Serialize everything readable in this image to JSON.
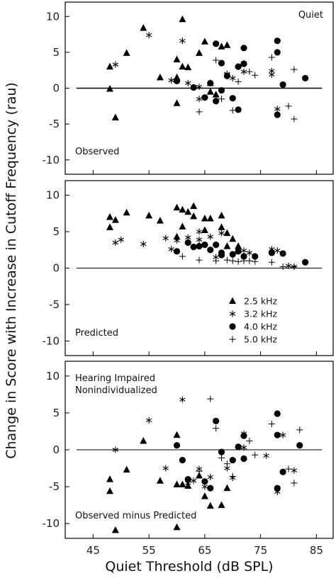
{
  "chart_data": {
    "type": "scatter",
    "ylabel": "Change in Score with Increase in Cutoff Frequency (rau)",
    "xlabel": "Quiet Threshold (dB SPL)",
    "xlim": [
      40,
      88
    ],
    "ylim": [
      -12,
      12
    ],
    "x_ticks": [
      45,
      55,
      65,
      75,
      85
    ],
    "y_ticks": [
      10,
      5,
      0,
      -5,
      -10
    ],
    "grid": false,
    "series_symbols": {
      "2.5 kHz": "triangle",
      "3.2 kHz": "asterisk",
      "4.0 kHz": "circle",
      "5.0 kHz": "plus"
    },
    "panels": [
      {
        "annotations": {
          "top_right": "Quiet",
          "bottom_left": "Observed"
        },
        "zero_line": "thick",
        "series": [
          {
            "name": "2.5 kHz",
            "points": [
              [
                48,
                3.0
              ],
              [
                48,
                -0.1
              ],
              [
                49,
                -4.1
              ],
              [
                51,
                4.9
              ],
              [
                54,
                8.4
              ],
              [
                57,
                1.5
              ],
              [
                60,
                4.0
              ],
              [
                60,
                -2.1
              ],
              [
                60,
                1.5
              ],
              [
                61,
                9.6
              ],
              [
                61,
                3.0
              ],
              [
                62,
                2.9
              ],
              [
                64,
                4.9
              ],
              [
                65,
                6.5
              ],
              [
                66,
                -0.5
              ],
              [
                66,
                0.7
              ],
              [
                67,
                -0.9
              ],
              [
                68,
                5.8
              ],
              [
                69,
                6.0
              ]
            ]
          },
          {
            "name": "3.2 kHz",
            "points": [
              [
                49,
                3.3
              ],
              [
                55,
                7.4
              ],
              [
                59,
                1.1
              ],
              [
                61,
                6.6
              ],
              [
                62,
                0.7
              ],
              [
                64,
                0.2
              ],
              [
                64,
                -1.5
              ],
              [
                69,
                2.0
              ],
              [
                69,
                1.9
              ],
              [
                70,
                1.4
              ],
              [
                72,
                3.5
              ],
              [
                72,
                2.3
              ],
              [
                77,
                2.4
              ],
              [
                77,
                1.9
              ],
              [
                78,
                -2.9
              ]
            ]
          },
          {
            "name": "4.0 kHz",
            "points": [
              [
                60,
                1.0
              ],
              [
                63,
                0.1
              ],
              [
                65,
                -1.3
              ],
              [
                66,
                0.7
              ],
              [
                67,
                -1.8
              ],
              [
                67,
                6.2
              ],
              [
                68,
                3.5
              ],
              [
                68,
                -0.3
              ],
              [
                69,
                1.7
              ],
              [
                70,
                -1.4
              ],
              [
                71,
                -3.0
              ],
              [
                71,
                3.0
              ],
              [
                72,
                5.6
              ],
              [
                72,
                3.4
              ],
              [
                78,
                6.6
              ],
              [
                78,
                5.0
              ],
              [
                78,
                -3.7
              ],
              [
                79,
                0.5
              ],
              [
                83,
                1.4
              ]
            ]
          },
          {
            "name": "5.0 kHz",
            "points": [
              [
                64,
                -3.3
              ],
              [
                67,
                3.9
              ],
              [
                68,
                -1.5
              ],
              [
                70,
                -3.1
              ],
              [
                71,
                0.9
              ],
              [
                73,
                2.3
              ],
              [
                74,
                1.8
              ],
              [
                77,
                4.3
              ],
              [
                80,
                -2.5
              ],
              [
                81,
                -4.3
              ],
              [
                81,
                2.6
              ]
            ]
          }
        ]
      },
      {
        "annotations": {
          "bottom_left": "Predicted"
        },
        "zero_line": "thin",
        "series": [
          {
            "name": "2.5 kHz",
            "points": [
              [
                48,
                7.0
              ],
              [
                48,
                5.6
              ],
              [
                49,
                6.6
              ],
              [
                51,
                7.6
              ],
              [
                55,
                7.2
              ],
              [
                57,
                6.5
              ],
              [
                60,
                8.3
              ],
              [
                60,
                4.3
              ],
              [
                61,
                8.0
              ],
              [
                61,
                5.7
              ],
              [
                62,
                7.7
              ],
              [
                63,
                8.5
              ],
              [
                63,
                7.1
              ],
              [
                65,
                6.8
              ],
              [
                65,
                5.2
              ],
              [
                66,
                6.8
              ],
              [
                68,
                7.2
              ],
              [
                68,
                5.6
              ],
              [
                69,
                4.8
              ],
              [
                69,
                3.0
              ],
              [
                70,
                4.0
              ],
              [
                71,
                3.0
              ]
            ]
          },
          {
            "name": "3.2 kHz",
            "points": [
              [
                49,
                3.5
              ],
              [
                50,
                3.9
              ],
              [
                54,
                3.3
              ],
              [
                58,
                4.1
              ],
              [
                59,
                2.6
              ],
              [
                60,
                3.8
              ],
              [
                62,
                4.2
              ],
              [
                64,
                3.9
              ],
              [
                64,
                5.0
              ],
              [
                66,
                4.3
              ],
              [
                67,
                1.5
              ],
              [
                68,
                4.8
              ],
              [
                71,
                2.6
              ],
              [
                72,
                2.4
              ],
              [
                73,
                2.1
              ],
              [
                77,
                2.6
              ],
              [
                78,
                2.4
              ],
              [
                80,
                0.3
              ],
              [
                81,
                0.2
              ]
            ]
          },
          {
            "name": "4.0 kHz",
            "points": [
              [
                60,
                2.3
              ],
              [
                62,
                3.5
              ],
              [
                63,
                2.9
              ],
              [
                64,
                3.0
              ],
              [
                65,
                3.2
              ],
              [
                66,
                2.5
              ],
              [
                67,
                3.2
              ],
              [
                68,
                2.1
              ],
              [
                68,
                1.8
              ],
              [
                70,
                1.9
              ],
              [
                71,
                2.3
              ],
              [
                72,
                1.6
              ],
              [
                74,
                1.6
              ],
              [
                77,
                2.1
              ],
              [
                79,
                2.0
              ],
              [
                83,
                0.8
              ]
            ]
          },
          {
            "name": "5.0 kHz",
            "points": [
              [
                61,
                1.6
              ],
              [
                64,
                1.1
              ],
              [
                67,
                1.0
              ],
              [
                69,
                1.1
              ],
              [
                70,
                1.0
              ],
              [
                71,
                0.9
              ],
              [
                72,
                1.0
              ],
              [
                73,
                1.0
              ],
              [
                74,
                0.9
              ],
              [
                77,
                0.8
              ],
              [
                79,
                0.2
              ],
              [
                81,
                0.2
              ]
            ]
          }
        ],
        "legend": {
          "placement": "bottom-right",
          "entries": [
            "2.5 kHz",
            "3.2 kHz",
            "4.0 kHz",
            "5.0 kHz"
          ]
        }
      },
      {
        "annotations": {
          "top_left": "Hearing Impaired",
          "top_left_2": "Nonindividualized",
          "bottom_left": "Observed minus Predicted"
        },
        "zero_line": "thin",
        "series": [
          {
            "name": "2.5 kHz",
            "points": [
              [
                48,
                -4.0
              ],
              [
                48,
                -5.6
              ],
              [
                49,
                -10.9
              ],
              [
                51,
                -2.7
              ],
              [
                54,
                1.2
              ],
              [
                57,
                -4.2
              ],
              [
                60,
                2.0
              ],
              [
                60,
                -4.7
              ],
              [
                60,
                -10.5
              ],
              [
                61,
                -4.7
              ],
              [
                62,
                -4.9
              ],
              [
                64,
                -3.5
              ],
              [
                65,
                -6.3
              ],
              [
                66,
                -7.6
              ],
              [
                68,
                -7.5
              ],
              [
                69,
                -5.2
              ]
            ]
          },
          {
            "name": "3.2 kHz",
            "points": [
              [
                49,
                0.0
              ],
              [
                55,
                4.0
              ],
              [
                58,
                -2.5
              ],
              [
                61,
                6.8
              ],
              [
                62,
                -4.5
              ],
              [
                63,
                -4.2
              ],
              [
                64,
                -2.6
              ],
              [
                65,
                -5.0
              ],
              [
                66,
                -3.7
              ],
              [
                69,
                -2.5
              ],
              [
                70,
                -3.8
              ],
              [
                72,
                2.2
              ],
              [
                72,
                0.3
              ],
              [
                76,
                -0.8
              ],
              [
                78,
                -5.7
              ],
              [
                79,
                2.0
              ],
              [
                81,
                -2.8
              ]
            ]
          },
          {
            "name": "4.0 kHz",
            "points": [
              [
                60,
                0.6
              ],
              [
                61,
                -1.4
              ],
              [
                62,
                -4.0
              ],
              [
                65,
                -4.3
              ],
              [
                66,
                -5.2
              ],
              [
                67,
                3.9
              ],
              [
                68,
                -0.3
              ],
              [
                70,
                -1.4
              ],
              [
                71,
                0.4
              ],
              [
                72,
                1.9
              ],
              [
                72,
                -1.2
              ],
              [
                78,
                4.9
              ],
              [
                78,
                2.0
              ],
              [
                78,
                -5.2
              ],
              [
                79,
                -3.0
              ],
              [
                82,
                0.6
              ]
            ]
          },
          {
            "name": "5.0 kHz",
            "points": [
              [
                64,
                -2.9
              ],
              [
                66,
                6.9
              ],
              [
                67,
                2.9
              ],
              [
                68,
                -1.1
              ],
              [
                69,
                -1.9
              ],
              [
                70,
                -3.6
              ],
              [
                73,
                1.2
              ],
              [
                74,
                -0.7
              ],
              [
                77,
                3.5
              ],
              [
                80,
                -2.6
              ],
              [
                81,
                -4.5
              ],
              [
                82,
                2.7
              ]
            ]
          }
        ]
      }
    ]
  }
}
